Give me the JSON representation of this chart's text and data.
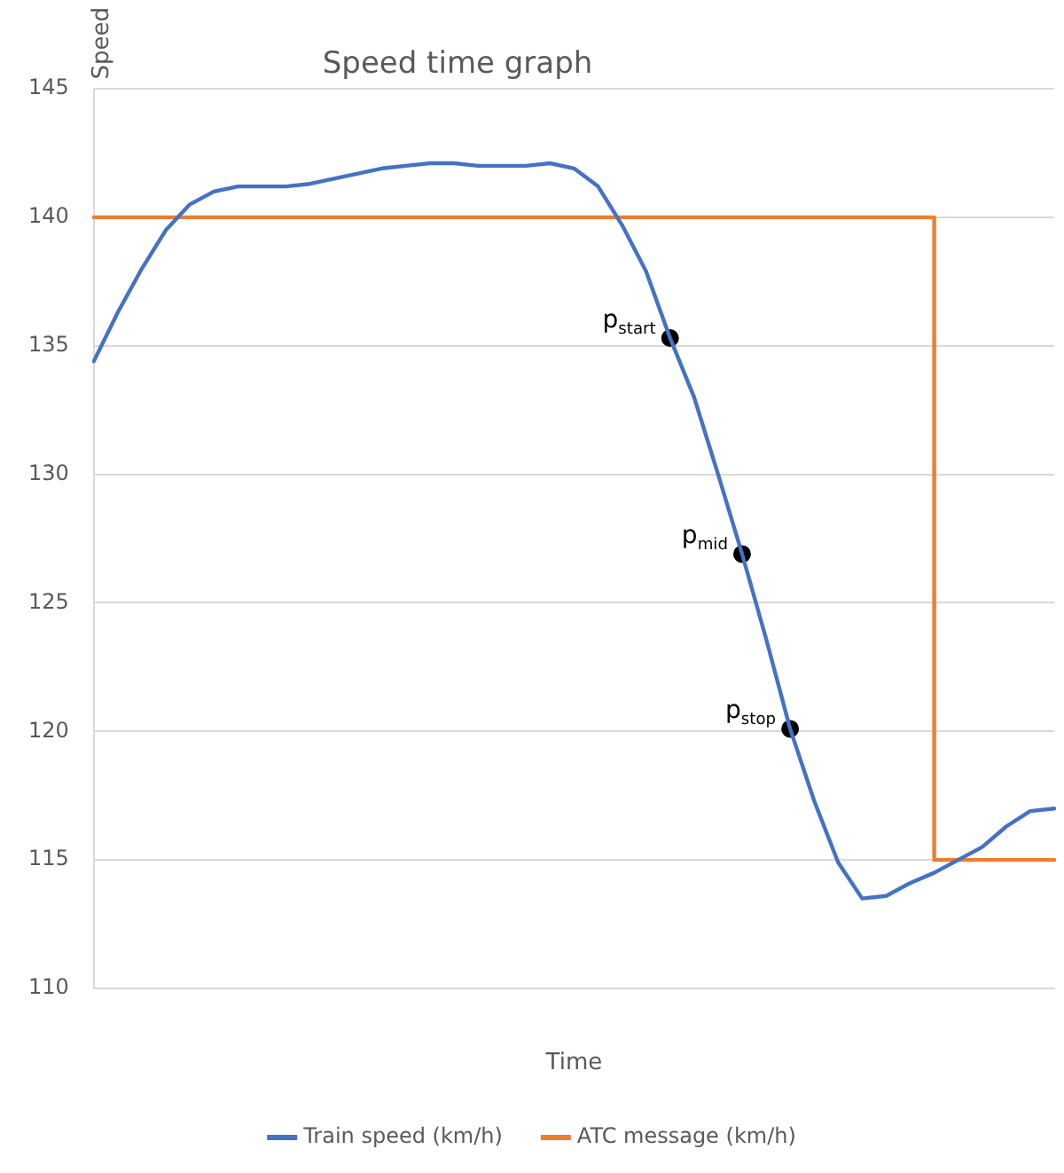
{
  "chart_data": {
    "type": "line",
    "title": "Speed time graph",
    "xlabel": "Time",
    "ylabel": "Speed",
    "categories": [
      null,
      null,
      null,
      null,
      null,
      null,
      null,
      null,
      null,
      null,
      null,
      null,
      null,
      null,
      null,
      null,
      null,
      null,
      null,
      null,
      null,
      null,
      null,
      null,
      null,
      null,
      null,
      null,
      null,
      null,
      null,
      null,
      null,
      null,
      null,
      null,
      null,
      null,
      null,
      null,
      null
    ],
    "ylim": [
      110,
      145
    ],
    "yticks": [
      110,
      115,
      120,
      125,
      130,
      135,
      140,
      145
    ],
    "grid": "y",
    "legend": "bottom",
    "marker": "none",
    "line_style": "solid",
    "series": [
      {
        "name": "Train speed (km/h)",
        "color": "#4472c4",
        "values": [
          134.4,
          136.3,
          138.0,
          139.5,
          140.5,
          141.0,
          141.2,
          141.2,
          141.2,
          141.3,
          141.5,
          141.7,
          141.9,
          142.0,
          142.1,
          142.1,
          142.0,
          142.0,
          142.0,
          142.1,
          141.9,
          141.2,
          139.7,
          137.9,
          135.3,
          133.0,
          130.0,
          126.9,
          123.6,
          120.1,
          117.3,
          114.9,
          113.5,
          113.6,
          114.1,
          114.5,
          115.0,
          115.5,
          116.3,
          116.9,
          117.0
        ]
      },
      {
        "name": "ATC message (km/h)",
        "type": "step",
        "color": "#ed7d31",
        "values": [
          140,
          140,
          140,
          140,
          140,
          140,
          140,
          140,
          140,
          140,
          140,
          140,
          140,
          140,
          140,
          140,
          140,
          140,
          140,
          140,
          140,
          140,
          140,
          140,
          140,
          140,
          140,
          140,
          140,
          140,
          140,
          140,
          140,
          140,
          140,
          115,
          115,
          115,
          115,
          115,
          115
        ]
      },
      {
        "type": "scatter",
        "color": "#000000",
        "marker": "circle",
        "values": [
          null,
          null,
          null,
          null,
          null,
          null,
          null,
          null,
          null,
          null,
          null,
          null,
          null,
          null,
          null,
          null,
          null,
          null,
          null,
          null,
          null,
          null,
          null,
          null,
          135.3,
          null,
          null,
          126.9,
          null,
          120.1,
          null,
          null,
          null,
          null,
          null,
          null,
          null,
          null,
          null,
          null,
          null
        ]
      }
    ],
    "annotations": [
      "p$_{start}$",
      "p$_{mid}$",
      "p$_{stop}$"
    ]
  }
}
